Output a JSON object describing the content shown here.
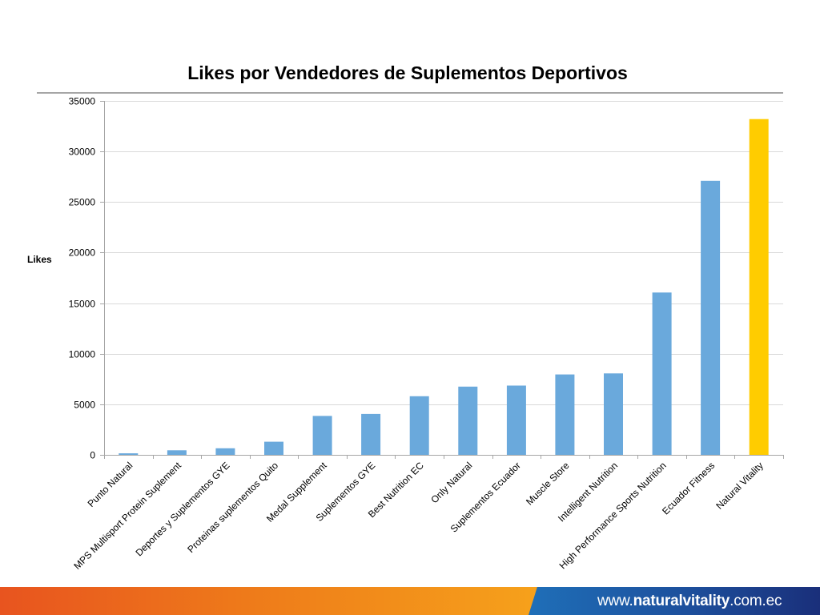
{
  "chart_data": {
    "type": "bar",
    "title": "Likes por Vendedores de Suplementos Deportivos",
    "xlabel": "",
    "ylabel": "Likes",
    "ylim": [
      0,
      35000
    ],
    "yticks": [
      0,
      5000,
      10000,
      15000,
      20000,
      25000,
      30000,
      35000
    ],
    "grid": true,
    "categories": [
      "Punto Natural",
      "MPS Multisport Protein Suplement",
      "Deportes y Suplementos GYE",
      "Proteinas suplementos Quito",
      "Medal Supplement",
      "Suplementos GYE",
      "Best Nutrition EC",
      "Only Natural",
      "Suplementos Ecuador",
      "Muscle Store",
      "Intelligent Nutrition",
      "High Performance Sports Nutrition",
      "Ecuador Fitness",
      "Natural Vitality"
    ],
    "values": [
      150,
      450,
      650,
      1300,
      3850,
      4050,
      5800,
      6750,
      6850,
      7950,
      8050,
      16050,
      27100,
      33200
    ],
    "colors": {
      "default_bar": "#6aa9dc",
      "highlight_bar": "#ffcc00",
      "gridline": "#d9d9d9",
      "axis": "#a6a6a6"
    },
    "highlight_index": 13
  },
  "footer": {
    "url_prefix": "www.",
    "url_brand": "naturalvitality",
    "url_suffix": ".com.ec",
    "colors": {
      "orange": "#ee7a1a",
      "blue": "#1d4f9c"
    }
  }
}
